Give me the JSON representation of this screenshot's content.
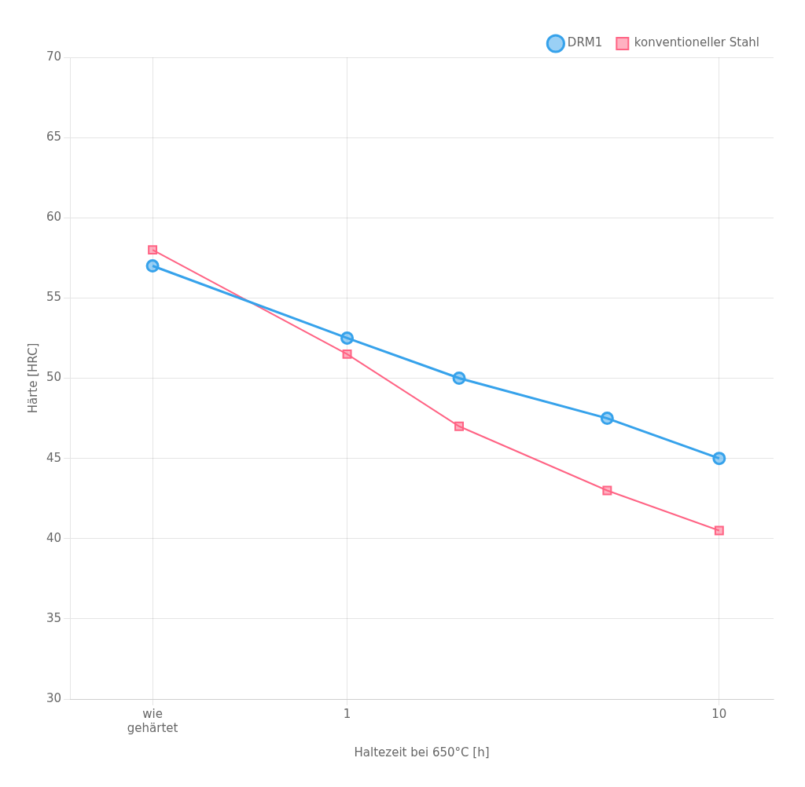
{
  "chart_data": {
    "type": "line",
    "xlabel": "Haltezeit bei 650°C [h]",
    "ylabel": "Härte [HRC]",
    "x": [
      0.3,
      1,
      2,
      5,
      10
    ],
    "series": [
      {
        "name": "DRM1",
        "values": [
          57.0,
          52.5,
          50.0,
          47.5,
          45.0
        ],
        "marker": "circle",
        "line_style": "solid"
      },
      {
        "name": "konventioneller Stahl",
        "values": [
          58.0,
          51.5,
          47.0,
          43.0,
          40.5
        ],
        "marker": "square",
        "line_style": "solid"
      }
    ],
    "log": "x",
    "xlim": [
      0.18,
      14
    ],
    "xticks": [
      {
        "value": 0.3,
        "label": "wie\ngehärtet"
      },
      1,
      10
    ],
    "ylim": [
      30,
      70
    ],
    "yticks": [
      30,
      35,
      40,
      45,
      50,
      55,
      60,
      65,
      70
    ],
    "grid": true,
    "legend": "upper right"
  }
}
